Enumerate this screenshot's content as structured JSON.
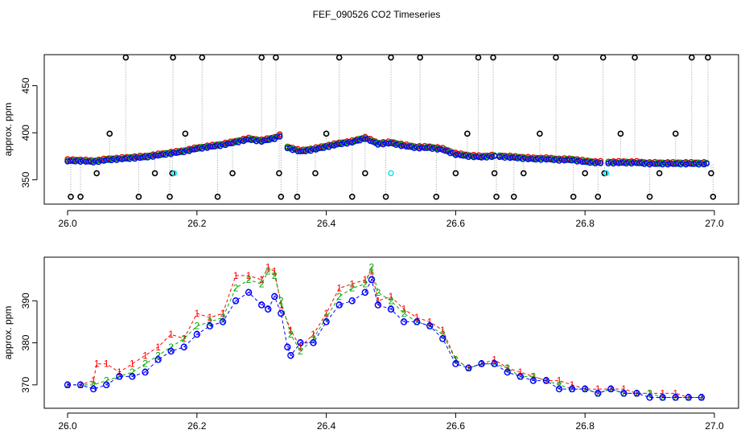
{
  "title": "FEF_090526  CO2 Timeseries",
  "chart_data": [
    {
      "type": "scatter",
      "ylabel": "approx. ppm",
      "xlim": [
        26.0,
        27.0
      ],
      "ylim": [
        325,
        483
      ],
      "xticks": [
        "26.0",
        "26.2",
        "26.4",
        "26.6",
        "26.8",
        "27.0"
      ],
      "xtick_values": [
        26.0,
        26.2,
        26.4,
        26.6,
        26.8,
        27.0
      ],
      "yticks": [
        "350",
        "400",
        "450"
      ],
      "ytick_values": [
        350,
        400,
        450
      ],
      "colors": {
        "red": "#ff0000",
        "green": "#00aa00",
        "blue": "#0000ff",
        "black": "#000000",
        "cyan": "#00e5ee",
        "gray": "#999999"
      },
      "main_series": {
        "x": [
          26.0,
          26.02,
          26.04,
          26.06,
          26.08,
          26.1,
          26.12,
          26.14,
          26.16,
          26.18,
          26.2,
          26.22,
          26.24,
          26.26,
          26.28,
          26.3,
          26.32,
          26.33,
          26.34,
          26.36,
          26.38,
          26.4,
          26.42,
          26.44,
          26.46,
          26.48,
          26.5,
          26.52,
          26.54,
          26.56,
          26.58,
          26.6,
          26.62,
          26.64,
          26.66,
          26.68,
          26.7,
          26.72,
          26.74,
          26.76,
          26.78,
          26.8,
          26.82,
          26.84,
          26.86,
          26.88,
          26.9,
          26.92,
          26.94,
          26.96,
          26.98
        ],
        "y": [
          370,
          370,
          369,
          371,
          372,
          373,
          374,
          376,
          378,
          380,
          383,
          385,
          387,
          390,
          393,
          391,
          394,
          397,
          384,
          380,
          382,
          385,
          388,
          390,
          394,
          388,
          389,
          386,
          384,
          384,
          382,
          377,
          375,
          374,
          375,
          374,
          373,
          372,
          372,
          371,
          371,
          369,
          368,
          368,
          368,
          368,
          367,
          367,
          367,
          367,
          367
        ]
      },
      "outliers": {
        "x": [
          26.005,
          26.02,
          26.045,
          26.065,
          26.09,
          26.11,
          26.135,
          26.158,
          26.162,
          26.163,
          26.182,
          26.208,
          26.232,
          26.255,
          26.3,
          26.322,
          26.327,
          26.33,
          26.355,
          26.383,
          26.4,
          26.42,
          26.44,
          26.46,
          26.492,
          26.5,
          26.545,
          26.57,
          26.6,
          26.618,
          26.635,
          26.658,
          26.66,
          26.663,
          26.705,
          26.69,
          26.73,
          26.755,
          26.782,
          26.8,
          26.82,
          26.828,
          26.83,
          26.855,
          26.877,
          26.9,
          26.915,
          26.94,
          26.965,
          26.99,
          26.995,
          26.998
        ],
        "y": [
          332,
          332,
          357,
          399,
          480,
          332,
          357,
          332,
          357,
          480,
          399,
          480,
          332,
          357,
          480,
          480,
          357,
          332,
          332,
          357,
          399,
          480,
          332,
          357,
          332,
          480,
          480,
          332,
          357,
          399,
          480,
          480,
          357,
          332,
          357,
          332,
          399,
          480,
          332,
          357,
          332,
          480,
          357,
          399,
          480,
          332,
          357,
          399,
          480,
          480,
          357,
          332
        ]
      },
      "cyan_points": {
        "x": [
          26.165,
          26.5,
          26.833
        ],
        "y": [
          357,
          357,
          357
        ]
      }
    },
    {
      "type": "line",
      "ylabel": "approx. ppm",
      "xlim": [
        26.0,
        27.0
      ],
      "ylim": [
        365,
        400
      ],
      "xticks": [
        "26.0",
        "26.2",
        "26.4",
        "26.6",
        "26.8",
        "27.0"
      ],
      "xtick_values": [
        26.0,
        26.2,
        26.4,
        26.6,
        26.8,
        27.0
      ],
      "yticks": [
        "370",
        "380",
        "390"
      ],
      "ytick_values": [
        370,
        380,
        390
      ],
      "series": [
        {
          "label": "1",
          "color": "#ff0000",
          "x": [
            26.0,
            26.02,
            26.04,
            26.045,
            26.06,
            26.08,
            26.1,
            26.12,
            26.14,
            26.16,
            26.18,
            26.2,
            26.22,
            26.24,
            26.26,
            26.28,
            26.3,
            26.31,
            26.32,
            26.33,
            26.345,
            26.36,
            26.38,
            26.4,
            26.42,
            26.44,
            26.46,
            26.47,
            26.48,
            26.5,
            26.52,
            26.54,
            26.56,
            26.58,
            26.6,
            26.62,
            26.64,
            26.66,
            26.68,
            26.7,
            26.72,
            26.74,
            26.76,
            26.78,
            26.8,
            26.82,
            26.84,
            26.86,
            26.88,
            26.9,
            26.92,
            26.94,
            26.96,
            26.98
          ],
          "y": [
            370,
            370,
            371,
            375,
            375,
            373,
            375,
            377,
            379,
            382,
            381,
            387,
            386,
            387,
            396,
            396,
            395,
            398,
            397,
            389,
            383,
            379,
            382,
            387,
            393,
            394,
            395,
            397,
            390,
            391,
            388,
            386,
            385,
            383,
            376,
            374,
            375,
            376,
            374,
            373,
            372,
            371,
            371,
            370,
            369,
            369,
            369,
            369,
            368,
            368,
            368,
            368,
            367,
            367
          ]
        },
        {
          "label": "2",
          "color": "#00aa00",
          "x": [
            26.0,
            26.02,
            26.04,
            26.06,
            26.08,
            26.1,
            26.12,
            26.14,
            26.16,
            26.18,
            26.2,
            26.22,
            26.24,
            26.26,
            26.28,
            26.3,
            26.31,
            26.32,
            26.33,
            26.345,
            26.36,
            26.38,
            26.4,
            26.42,
            26.44,
            26.46,
            26.47,
            26.48,
            26.5,
            26.52,
            26.54,
            26.56,
            26.58,
            26.6,
            26.62,
            26.64,
            26.66,
            26.68,
            26.7,
            26.72,
            26.74,
            26.76,
            26.78,
            26.8,
            26.82,
            26.84,
            26.86,
            26.88,
            26.9,
            26.92,
            26.94,
            26.96,
            26.98
          ],
          "y": [
            370,
            370,
            370,
            371,
            372,
            373,
            375,
            377,
            379,
            381,
            384,
            385,
            386,
            393,
            395,
            394,
            397,
            396,
            390,
            382,
            378,
            381,
            386,
            391,
            393,
            394,
            398,
            392,
            390,
            387,
            385,
            384,
            382,
            376,
            374,
            375,
            375,
            374,
            372,
            372,
            371,
            370,
            369,
            369,
            368,
            369,
            368,
            368,
            368,
            367,
            367,
            367,
            367
          ]
        },
        {
          "label": "3",
          "color": "#0000ff",
          "x": [
            26.0,
            26.02,
            26.04,
            26.06,
            26.08,
            26.1,
            26.12,
            26.14,
            26.16,
            26.18,
            26.2,
            26.22,
            26.24,
            26.26,
            26.28,
            26.3,
            26.31,
            26.32,
            26.33,
            26.34,
            26.345,
            26.36,
            26.38,
            26.4,
            26.42,
            26.44,
            26.46,
            26.47,
            26.48,
            26.5,
            26.52,
            26.54,
            26.56,
            26.58,
            26.6,
            26.62,
            26.64,
            26.66,
            26.68,
            26.7,
            26.72,
            26.74,
            26.76,
            26.78,
            26.8,
            26.82,
            26.84,
            26.86,
            26.88,
            26.9,
            26.92,
            26.94,
            26.96,
            26.98
          ],
          "y": [
            370,
            370,
            369,
            370,
            372,
            372,
            373,
            376,
            378,
            379,
            382,
            384,
            385,
            390,
            392,
            389,
            388,
            391,
            387,
            379,
            377,
            380,
            380,
            385,
            389,
            390,
            392,
            395,
            389,
            388,
            385,
            385,
            384,
            381,
            375,
            374,
            375,
            375,
            373,
            372,
            371,
            371,
            369,
            369,
            369,
            368,
            369,
            368,
            368,
            367,
            367,
            367,
            367,
            367
          ]
        }
      ]
    }
  ]
}
